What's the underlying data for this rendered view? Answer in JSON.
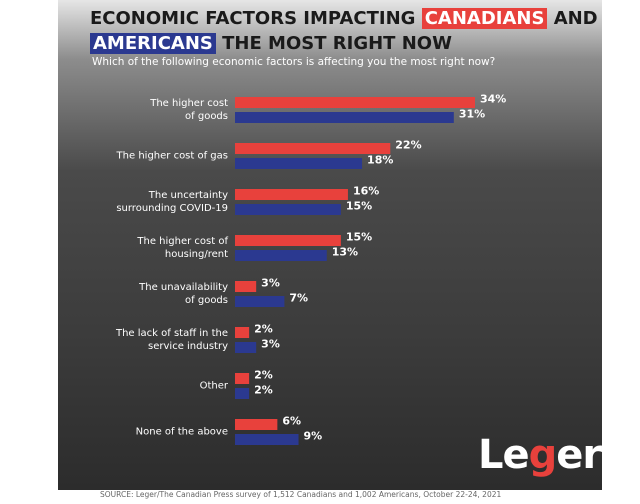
{
  "chart_data": {
    "type": "bar",
    "orientation": "horizontal",
    "title": [
      "ECONOMIC FACTORS IMPACTING ",
      "CANADIANS",
      " AND",
      "AMERICANS",
      " THE MOST RIGHT NOW"
    ],
    "subtitle": "Which of the following economic factors is affecting you the most right now?",
    "categories": [
      "The higher cost\nof goods",
      "The higher cost of gas",
      "The uncertainty\nsurrounding COVID-19",
      "The higher cost of\nhousing/rent",
      "The unavailability\nof goods",
      "The lack of staff in the\nservice industry",
      "Other",
      "None of the above"
    ],
    "series": [
      {
        "color": "#e8413c",
        "values": [
          34,
          22,
          16,
          15,
          3,
          2,
          2,
          6
        ],
        "value_labels": [
          "34%",
          "22%",
          "16%",
          "15%",
          "3%",
          "2%",
          "2%",
          "6%"
        ]
      },
      {
        "color": "#2b3990",
        "values": [
          31,
          18,
          15,
          13,
          7,
          3,
          2,
          9
        ],
        "value_labels": [
          "31%",
          "18%",
          "15%",
          "13%",
          "7%",
          "3%",
          "2%",
          "9%"
        ]
      }
    ],
    "source": "SOURCE: Leger/The Canadian Press survey of 1,512 Canadians and 1,002 Americans, October 22-24, 2021",
    "logo": [
      "Le",
      "g",
      "er"
    ]
  }
}
